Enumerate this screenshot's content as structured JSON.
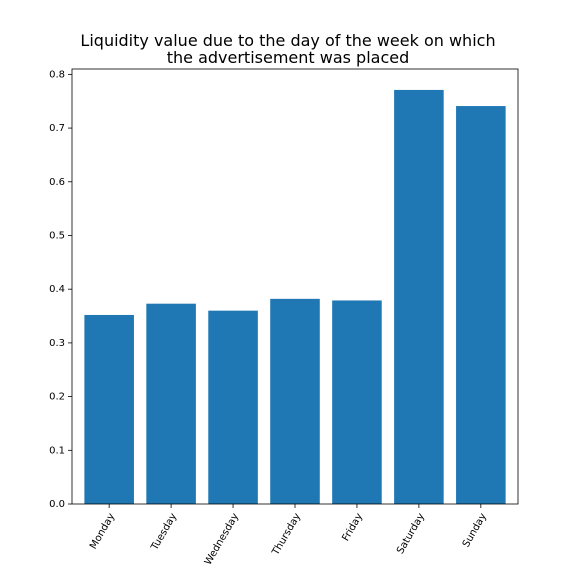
{
  "chart_data": {
    "type": "bar",
    "title_lines": [
      "Liquidity value due to the day of the week on which",
      "the advertisement was placed"
    ],
    "categories": [
      "Monday",
      "Tuesday",
      "Wednesday",
      "Thursday",
      "Friday",
      "Saturday",
      "Sunday"
    ],
    "values": [
      0.352,
      0.373,
      0.36,
      0.382,
      0.379,
      0.771,
      0.741
    ],
    "xlabel": "",
    "ylabel": "",
    "ylim": [
      0,
      0.81
    ],
    "yticks": [
      0.0,
      0.1,
      0.2,
      0.3,
      0.4,
      0.5,
      0.6,
      0.7,
      0.8
    ],
    "ytick_labels": [
      "0.0",
      "0.1",
      "0.2",
      "0.3",
      "0.4",
      "0.5",
      "0.6",
      "0.7",
      "0.8"
    ],
    "x_tick_rotation_deg": -60,
    "bar_color": "#1f77b4",
    "grid": false,
    "legend": "none"
  }
}
